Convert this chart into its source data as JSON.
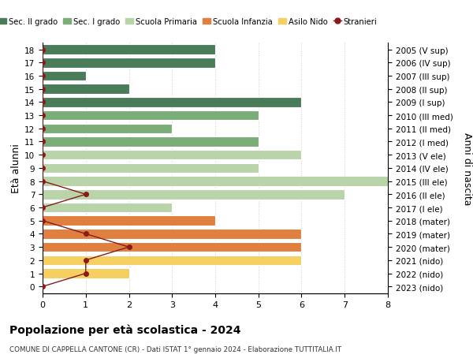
{
  "ages": [
    0,
    1,
    2,
    3,
    4,
    5,
    6,
    7,
    8,
    9,
    10,
    11,
    12,
    13,
    14,
    15,
    16,
    17,
    18
  ],
  "years": [
    "2023 (nido)",
    "2022 (nido)",
    "2021 (nido)",
    "2020 (mater)",
    "2019 (mater)",
    "2018 (mater)",
    "2017 (I ele)",
    "2016 (II ele)",
    "2015 (III ele)",
    "2014 (IV ele)",
    "2013 (V ele)",
    "2012 (I med)",
    "2011 (II med)",
    "2010 (III med)",
    "2009 (I sup)",
    "2008 (II sup)",
    "2007 (III sup)",
    "2006 (IV sup)",
    "2005 (V sup)"
  ],
  "bar_values": [
    0,
    2,
    6,
    6,
    6,
    4,
    3,
    7,
    8,
    5,
    6,
    5,
    3,
    5,
    6,
    2,
    1,
    4,
    4
  ],
  "bar_colors": [
    "#f5d060",
    "#f5d060",
    "#f5d060",
    "#e08040",
    "#e08040",
    "#e08040",
    "#b8d4a8",
    "#b8d4a8",
    "#b8d4a8",
    "#b8d4a8",
    "#b8d4a8",
    "#7aad78",
    "#7aad78",
    "#7aad78",
    "#4a7c59",
    "#4a7c59",
    "#4a7c59",
    "#4a7c59",
    "#4a7c59"
  ],
  "stranieri_values": [
    0,
    1,
    1,
    2,
    1,
    0,
    0,
    1,
    0,
    0,
    0,
    0,
    0,
    0,
    0,
    0,
    0,
    0,
    0
  ],
  "stranieri_color": "#8b1a1a",
  "legend_labels": [
    "Sec. II grado",
    "Sec. I grado",
    "Scuola Primaria",
    "Scuola Infanzia",
    "Asilo Nido",
    "Stranieri"
  ],
  "legend_colors": [
    "#4a7c59",
    "#7aad78",
    "#b8d4a8",
    "#e08040",
    "#f5d060",
    "#8b1a1a"
  ],
  "ylabel": "Età alunni",
  "ylabel_right": "Anni di nascita",
  "title": "Popolazione per età scolastica - 2024",
  "subtitle": "COMUNE DI CAPPELLA CANTONE (CR) - Dati ISTAT 1° gennaio 2024 - Elaborazione TUTTITALIA.IT",
  "xlim": [
    0,
    8
  ],
  "xticks": [
    0,
    1,
    2,
    3,
    4,
    5,
    6,
    7,
    8
  ],
  "bg_color": "#ffffff",
  "grid_color": "#cccccc"
}
